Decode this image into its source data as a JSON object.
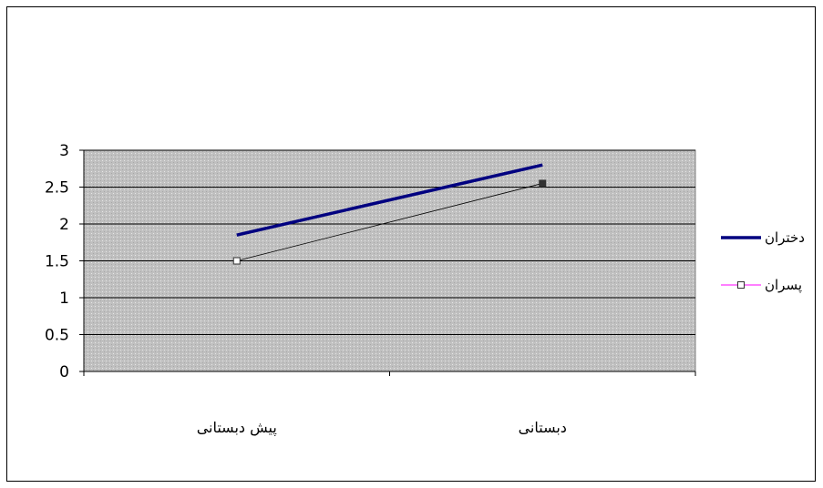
{
  "chart_data": {
    "type": "line",
    "categories": [
      "پیش دبستانی",
      "دبستانی"
    ],
    "series": [
      {
        "name": "دختران",
        "values": [
          1.85,
          2.8
        ],
        "color": "#000080",
        "marker": "none"
      },
      {
        "name": "پسران",
        "values": [
          1.5,
          2.55
        ],
        "color": "#000000",
        "legend_color": "#ff00ff",
        "marker": "square"
      }
    ],
    "ylim": [
      0,
      3
    ],
    "yticks": [
      "0",
      "0.5",
      "1",
      "1.5",
      "2",
      "2.5",
      "3"
    ],
    "ytick_values": [
      0,
      0.5,
      1,
      1.5,
      2,
      2.5,
      3
    ],
    "grid": true,
    "plot_background": "#c0c0c0",
    "legend_position": "right",
    "title": "",
    "xlabel": "",
    "ylabel": ""
  }
}
